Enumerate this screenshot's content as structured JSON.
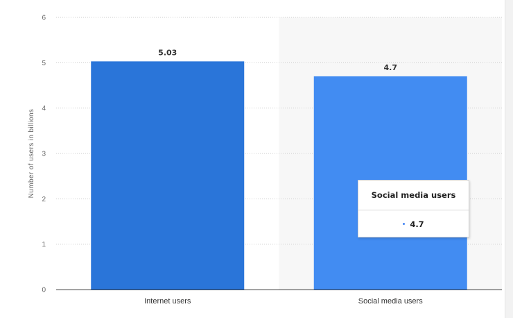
{
  "chart_data": {
    "type": "bar",
    "categories": [
      "Internet users",
      "Social media users"
    ],
    "values": [
      5.03,
      4.7
    ],
    "value_labels": [
      "5.03",
      "4.7"
    ],
    "title": "",
    "xlabel": "",
    "ylabel": "Number of users in billions",
    "ylim": [
      0,
      6
    ],
    "yticks": [
      "0",
      "1",
      "2",
      "3",
      "4",
      "5",
      "6"
    ],
    "grid": "horizontal dotted",
    "colors": [
      "#2a75d9",
      "#428cf2"
    ]
  },
  "tooltip": {
    "title": "Social media users",
    "value": "4.7"
  },
  "colors": {
    "bar_dark": "#2a75d9",
    "bar_light": "#428cf2",
    "hover_band": "#f7f7f7",
    "grid": "#cccccc"
  }
}
